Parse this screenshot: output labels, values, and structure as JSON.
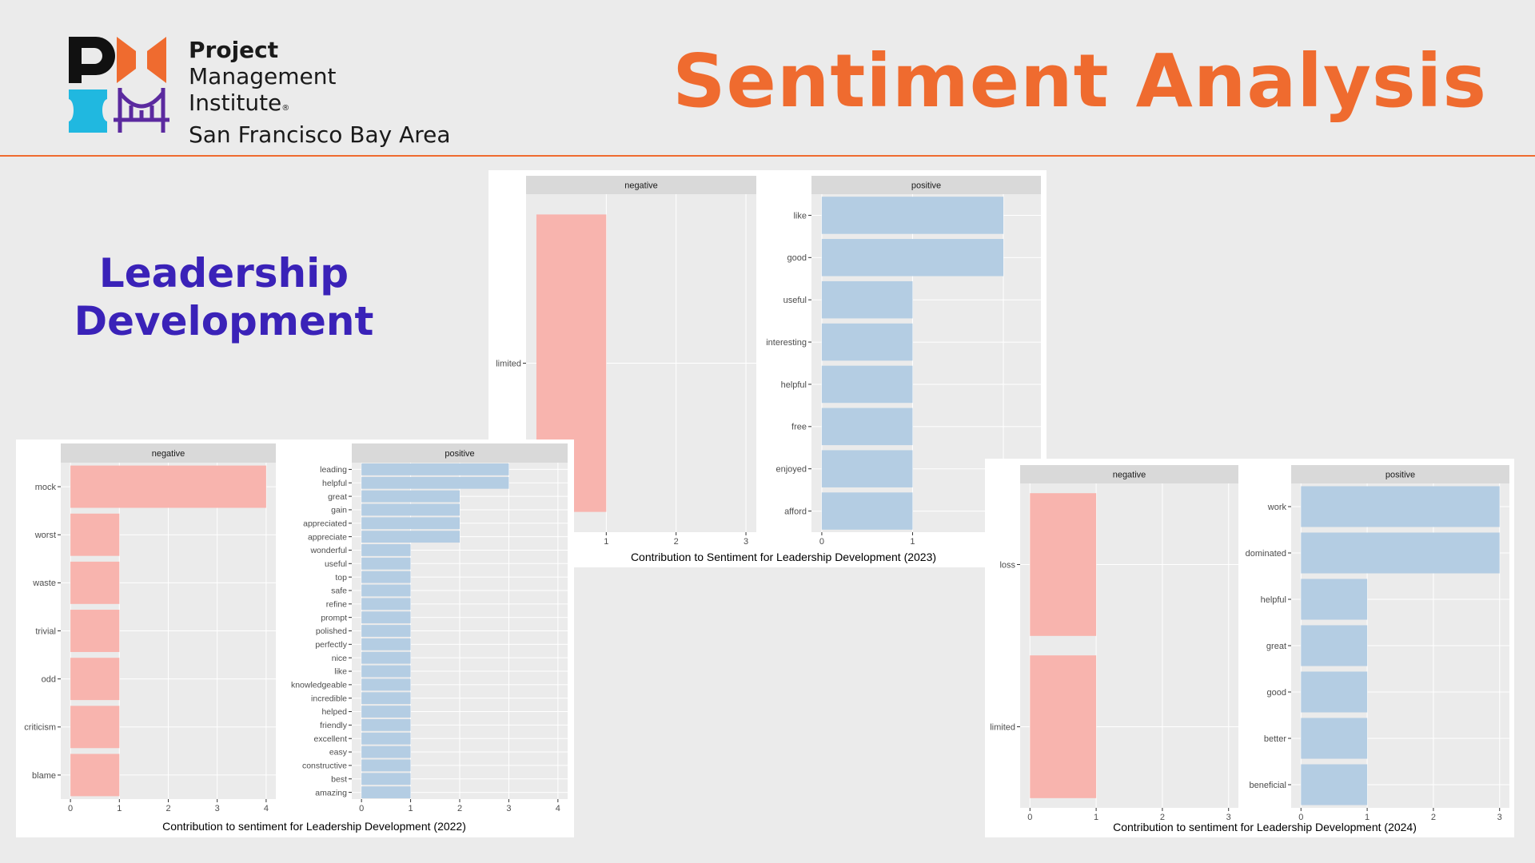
{
  "header": {
    "logo_lines": [
      "Project",
      "Management",
      "Institute",
      "San Francisco Bay Area"
    ],
    "logo_registered": "®",
    "slide_title": "Sentiment Analysis",
    "section_title": [
      "Leadership",
      "Development"
    ]
  },
  "colors": {
    "negative": "#f8b4ae",
    "positive": "#b4cde3",
    "strip": "#d9d9d9",
    "panel_bg": "#ebebeb",
    "grid": "#ffffff",
    "accent": "#ef6b2f",
    "section": "#3a22b8"
  },
  "chart_data": [
    {
      "type": "bar",
      "orientation": "horizontal",
      "xlabel": "Contribution to sentiment for Leadership Development (2022)",
      "facets": [
        {
          "name": "negative",
          "xlim": [
            0,
            4
          ],
          "ticks": [
            0,
            1,
            2,
            3,
            4
          ],
          "categories": [
            "mock",
            "worst",
            "waste",
            "trivial",
            "odd",
            "criticism",
            "blame"
          ],
          "values": [
            4,
            1,
            1,
            1,
            1,
            1,
            1
          ]
        },
        {
          "name": "positive",
          "xlim": [
            0,
            4
          ],
          "ticks": [
            0,
            1,
            2,
            3,
            4
          ],
          "categories": [
            "leading",
            "helpful",
            "great",
            "gain",
            "appreciated",
            "appreciate",
            "wonderful",
            "useful",
            "top",
            "safe",
            "refine",
            "prompt",
            "polished",
            "perfectly",
            "nice",
            "like",
            "knowledgeable",
            "incredible",
            "helped",
            "friendly",
            "excellent",
            "easy",
            "constructive",
            "best",
            "amazing"
          ],
          "values": [
            3,
            3,
            2,
            2,
            2,
            2,
            1,
            1,
            1,
            1,
            1,
            1,
            1,
            1,
            1,
            1,
            1,
            1,
            1,
            1,
            1,
            1,
            1,
            1,
            1
          ]
        }
      ]
    },
    {
      "type": "bar",
      "orientation": "horizontal",
      "xlabel": "Contribution to Sentiment for Leadership Development (2023)",
      "facets": [
        {
          "name": "negative",
          "xlim": [
            0,
            3
          ],
          "ticks": [
            1,
            2,
            3
          ],
          "categories": [
            "limited"
          ],
          "values": [
            1
          ]
        },
        {
          "name": "positive",
          "xlim": [
            0,
            2.3
          ],
          "ticks": [
            0,
            1,
            2
          ],
          "categories": [
            "like",
            "good",
            "useful",
            "interesting",
            "helpful",
            "free",
            "enjoyed",
            "afford"
          ],
          "values": [
            2,
            2,
            1,
            1,
            1,
            1,
            1,
            1
          ]
        }
      ]
    },
    {
      "type": "bar",
      "orientation": "horizontal",
      "xlabel": "Contribution to sentiment for Leadership Development (2024)",
      "facets": [
        {
          "name": "negative",
          "xlim": [
            0,
            3
          ],
          "ticks": [
            0,
            1,
            2,
            3
          ],
          "categories": [
            "loss",
            "limited"
          ],
          "values": [
            1,
            1
          ]
        },
        {
          "name": "positive",
          "xlim": [
            0,
            3
          ],
          "ticks": [
            0,
            1,
            2,
            3
          ],
          "categories": [
            "work",
            "dominated",
            "helpful",
            "great",
            "good",
            "better",
            "beneficial"
          ],
          "values": [
            3,
            3,
            1,
            1,
            1,
            1,
            1
          ]
        }
      ]
    }
  ]
}
